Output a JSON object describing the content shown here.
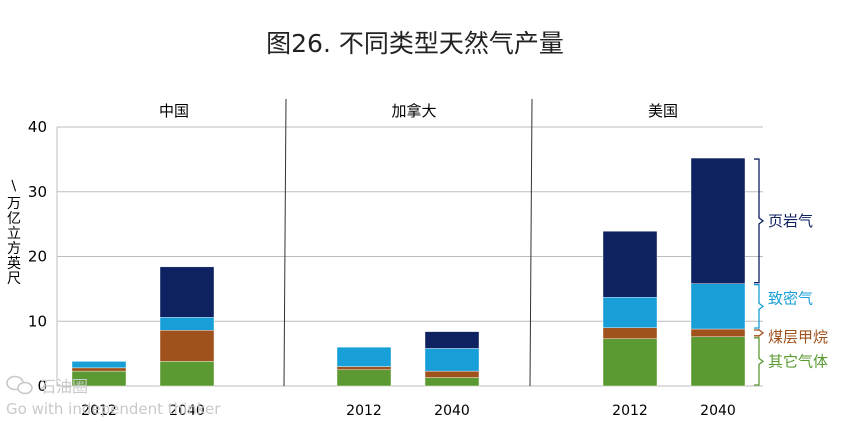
{
  "chart_data": {
    "type": "bar",
    "stacked": true,
    "title": "图26. 不同类型天然气产量",
    "ylabel": "万亿立方英尺",
    "ylabel_glyphs": [
      "万",
      "亿",
      "立",
      "方",
      "英",
      "尺"
    ],
    "ylabel_prefix": "/",
    "ylim": [
      0,
      40
    ],
    "yticks": [
      0,
      10,
      20,
      30,
      40
    ],
    "grid": true,
    "groups": [
      "中国",
      "加拿大",
      "美国"
    ],
    "categories": [
      "2012",
      "2040",
      "2012",
      "2040",
      "2012",
      "2040"
    ],
    "series": [
      {
        "name": "其它气体",
        "color": "#5b9a32",
        "values": [
          2.3,
          3.8,
          2.5,
          1.3,
          7.3,
          7.6
        ]
      },
      {
        "name": "煤层甲烷",
        "color": "#a0521c",
        "values": [
          0.5,
          4.8,
          0.5,
          1.0,
          1.7,
          1.2
        ]
      },
      {
        "name": "致密气",
        "color": "#189fd8",
        "values": [
          1.0,
          2.0,
          3.0,
          3.5,
          4.7,
          7.0
        ]
      },
      {
        "name": "页岩气",
        "color": "#0e2160",
        "values": [
          0.0,
          7.8,
          0.0,
          2.6,
          10.2,
          19.4
        ]
      }
    ],
    "legend_placement": "right"
  },
  "watermark": {
    "brand": "石油圈",
    "slogan": "Go with independent thinker",
    "icon": "wechat-icon"
  }
}
